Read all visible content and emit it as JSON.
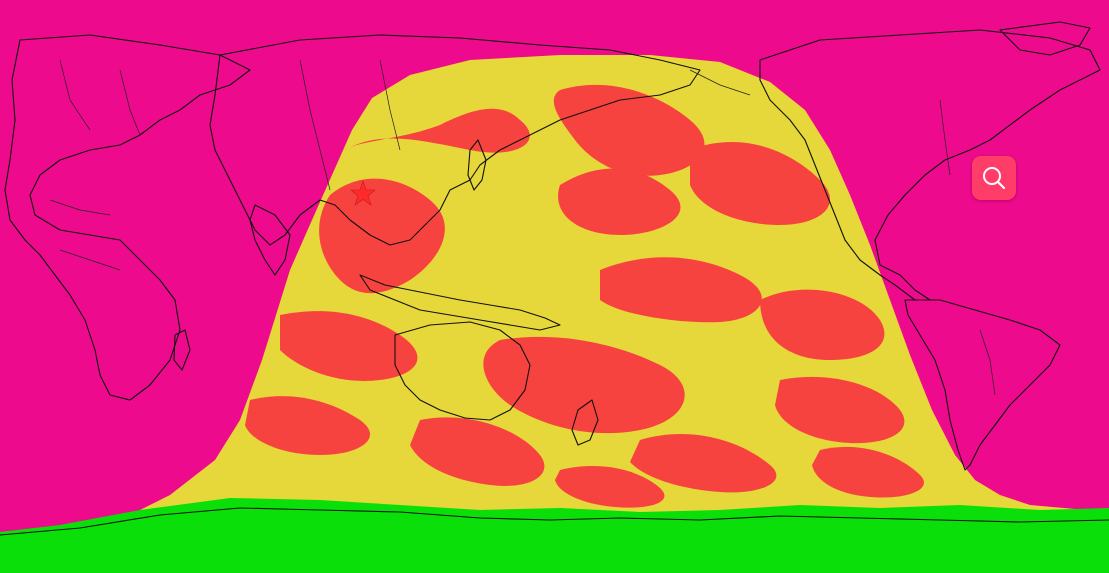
{
  "map": {
    "projection": "equirectangular",
    "colors": {
      "background": "#ee0a8c",
      "covered": "#e6d83a",
      "strong": "#f7433f",
      "polar": "#0adf0a",
      "coastline": "#111111"
    },
    "marker": {
      "icon": "star-marker-icon",
      "color": "#ff2b2b",
      "lat": 35,
      "lon": 104
    }
  },
  "controls": {
    "search": {
      "icon": "search-icon",
      "color": "#ff3d68"
    }
  }
}
